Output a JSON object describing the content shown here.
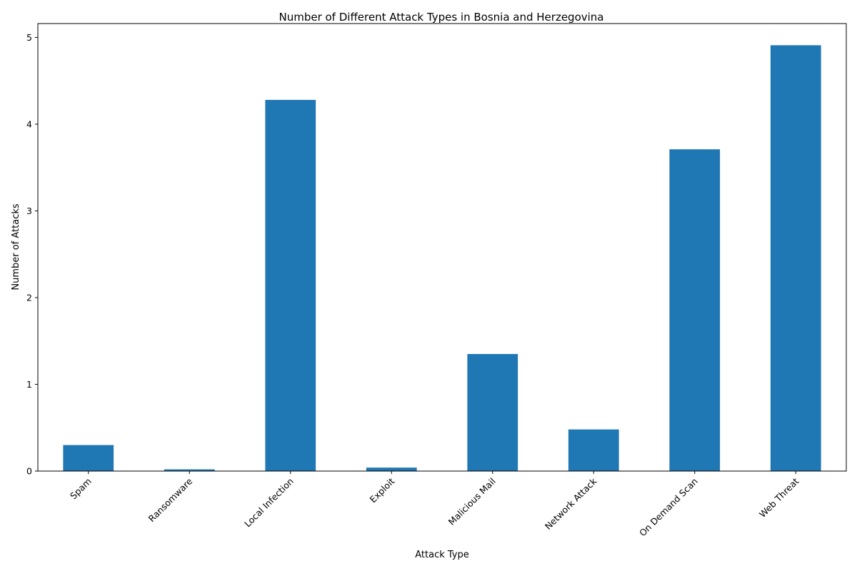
{
  "chart_data": {
    "type": "bar",
    "title": "Number of Different Attack Types in Bosnia and Herzegovina",
    "xlabel": "Attack Type",
    "ylabel": "Number of Attacks",
    "categories": [
      "Spam",
      "Ransomware",
      "Local Infection",
      "Exploit",
      "Malicious Mail",
      "Network Attack",
      "On Demand Scan",
      "Web Threat"
    ],
    "values": [
      0.3,
      0.02,
      4.28,
      0.04,
      1.35,
      0.48,
      3.71,
      4.91
    ],
    "ylim": [
      0,
      5.16
    ],
    "yticks": [
      0,
      1,
      2,
      3,
      4,
      5
    ],
    "grid": false,
    "legend": "none",
    "bar_color": "#1f77b4"
  }
}
